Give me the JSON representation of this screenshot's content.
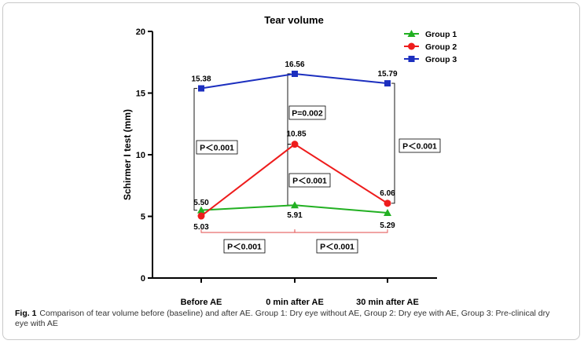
{
  "chart_data": {
    "type": "line",
    "title": "Tear volume",
    "ylabel": "Schirmer I test (mm)",
    "xlabel": "",
    "categories": [
      "Before AE",
      "0 min after AE",
      "30 min after AE"
    ],
    "ylim": [
      0,
      20
    ],
    "yticks": [
      0,
      5,
      10,
      15,
      20
    ],
    "grid": false,
    "legend_position": "top-right",
    "series": [
      {
        "name": "Group 1",
        "color": "#22b022",
        "marker": "triangle",
        "values": [
          5.5,
          5.91,
          5.29
        ],
        "labels": [
          "5.50",
          "5.91",
          "5.29"
        ]
      },
      {
        "name": "Group 2",
        "color": "#ee1c1c",
        "marker": "circle",
        "values": [
          5.03,
          10.85,
          6.06
        ],
        "labels": [
          "5.03",
          "10.85",
          "6.06"
        ]
      },
      {
        "name": "Group 3",
        "color": "#1c2fbf",
        "marker": "square",
        "values": [
          15.38,
          16.56,
          15.79
        ],
        "labels": [
          "15.38",
          "16.56",
          "15.79"
        ]
      }
    ],
    "annotations": [
      {
        "text": "P＜0.001",
        "between": "Group 3 vs Group 1, Before AE"
      },
      {
        "text": "P=0.002",
        "between": "Group 3 vs Group 2, 0 min after AE"
      },
      {
        "text": "P＜0.001",
        "between": "Group 2 vs Group 1, 0 min after AE"
      },
      {
        "text": "P＜0.001",
        "between": "Group 3 vs Group 2, 30 min after AE"
      },
      {
        "text": "P＜0.001",
        "between": "Group 2, Before AE vs 0 min after AE"
      },
      {
        "text": "P＜0.001",
        "between": "Group 2, 0 min after AE vs 30 min after AE"
      }
    ]
  },
  "caption": {
    "label": "Fig. 1",
    "text": "Comparison of tear volume before (baseline) and after AE. Group 1: Dry eye without AE, Group 2: Dry eye with AE, Group 3: Pre-clinical dry eye with AE"
  }
}
